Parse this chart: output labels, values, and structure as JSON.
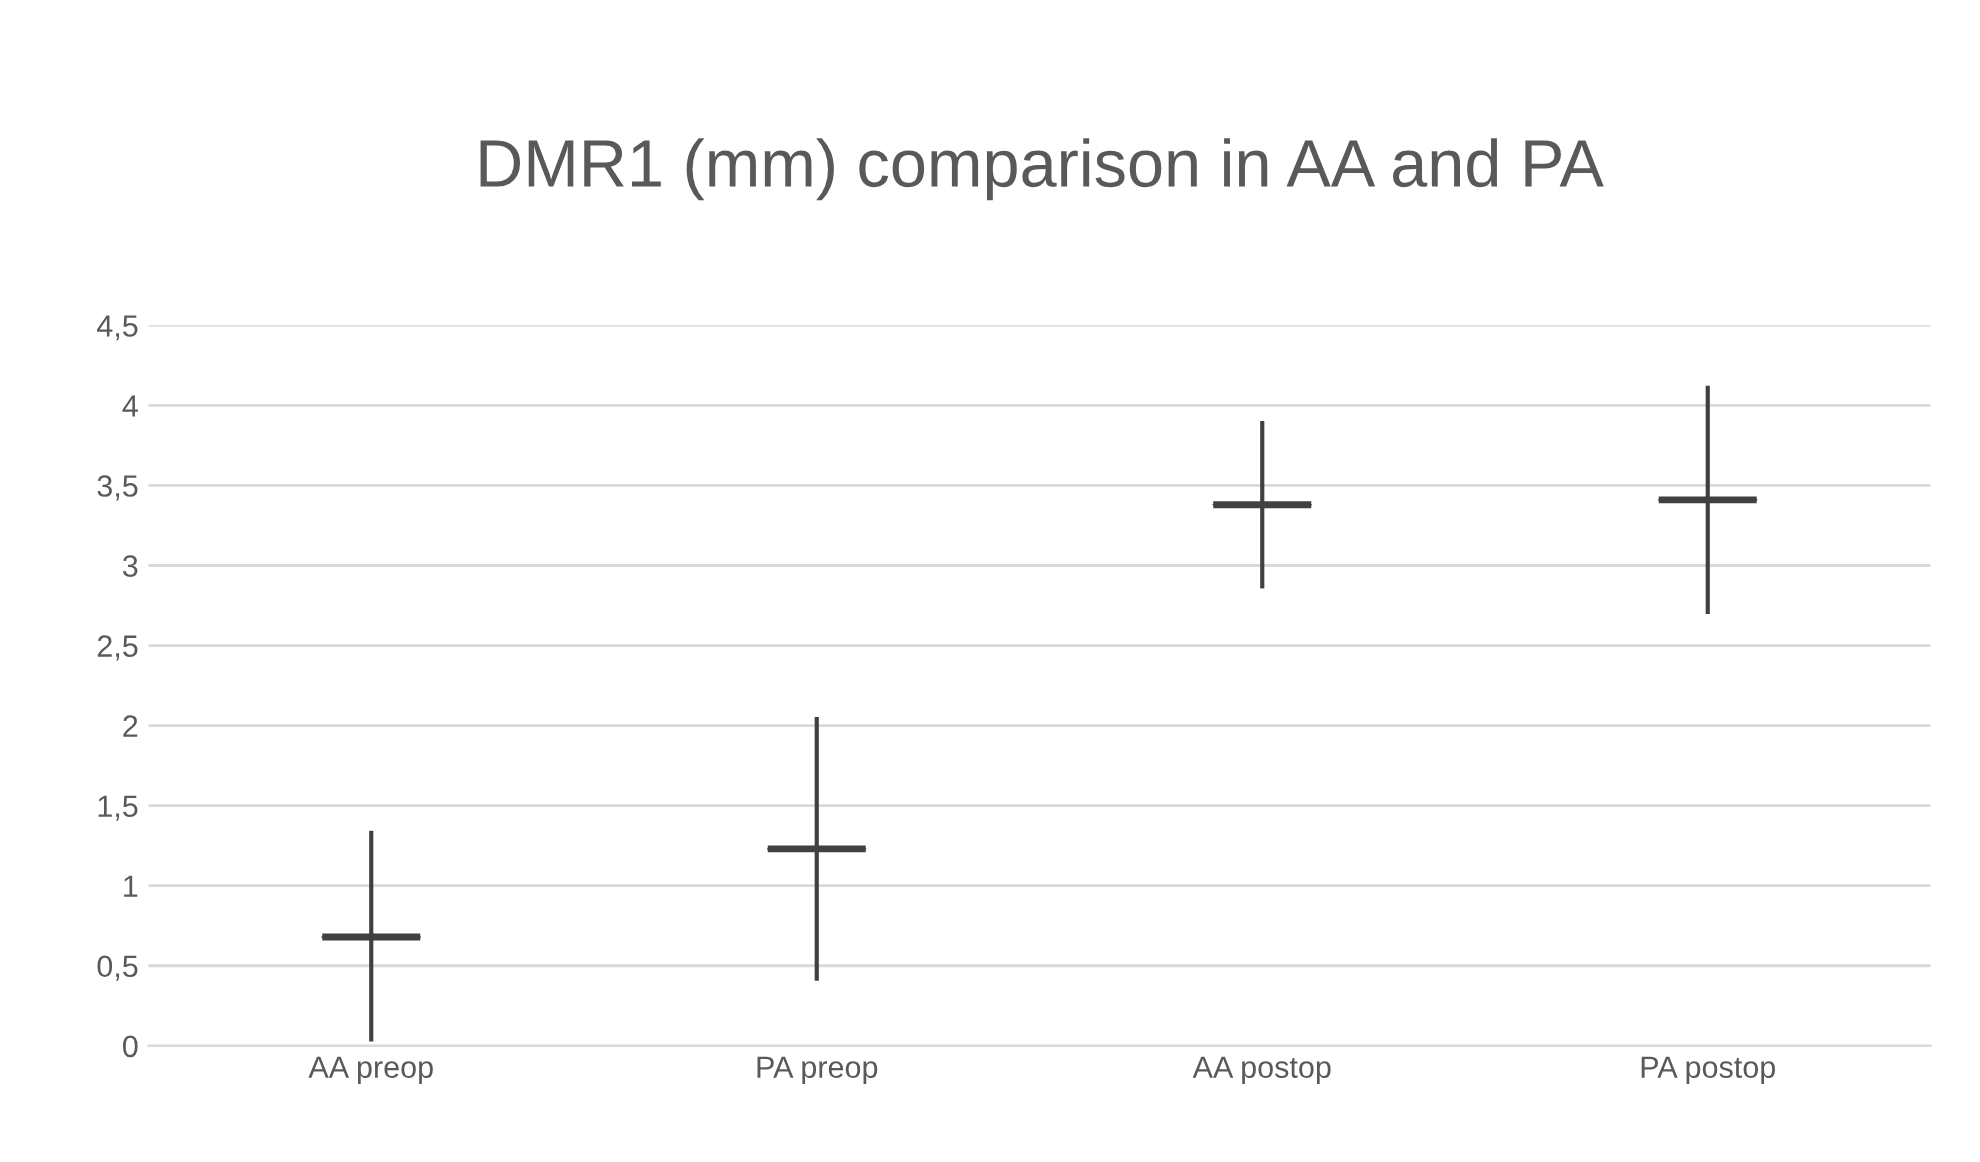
{
  "chart_data": {
    "type": "box",
    "title": "DMR1 (mm) comparison in AA and PA",
    "categories": [
      "AA preop",
      "PA preop",
      "AA postop",
      "PA postop"
    ],
    "series": [
      {
        "color": "#404040",
        "boxes": [
          {
            "low": 0.04,
            "q1": 0.68,
            "median": 0.68,
            "q3": 0.68,
            "high": 1.33
          },
          {
            "low": 0.42,
            "q1": 1.23,
            "median": 1.23,
            "q3": 1.23,
            "high": 2.04
          },
          {
            "low": 2.87,
            "q1": 3.38,
            "median": 3.38,
            "q3": 3.38,
            "high": 3.89
          },
          {
            "low": 2.71,
            "q1": 3.41,
            "median": 3.41,
            "q3": 3.41,
            "high": 4.11
          }
        ]
      }
    ],
    "ylim": [
      0,
      4.5
    ],
    "yticks": [
      0,
      {
        "value": 0.5,
        "label": "0,5"
      },
      1,
      {
        "value": 1.5,
        "label": "1,5"
      },
      2,
      {
        "value": 2.5,
        "label": "2,5"
      },
      3,
      {
        "value": 3.5,
        "label": "3,5"
      },
      4,
      {
        "value": 4.5,
        "label": "4,5"
      }
    ],
    "grid": "y"
  }
}
